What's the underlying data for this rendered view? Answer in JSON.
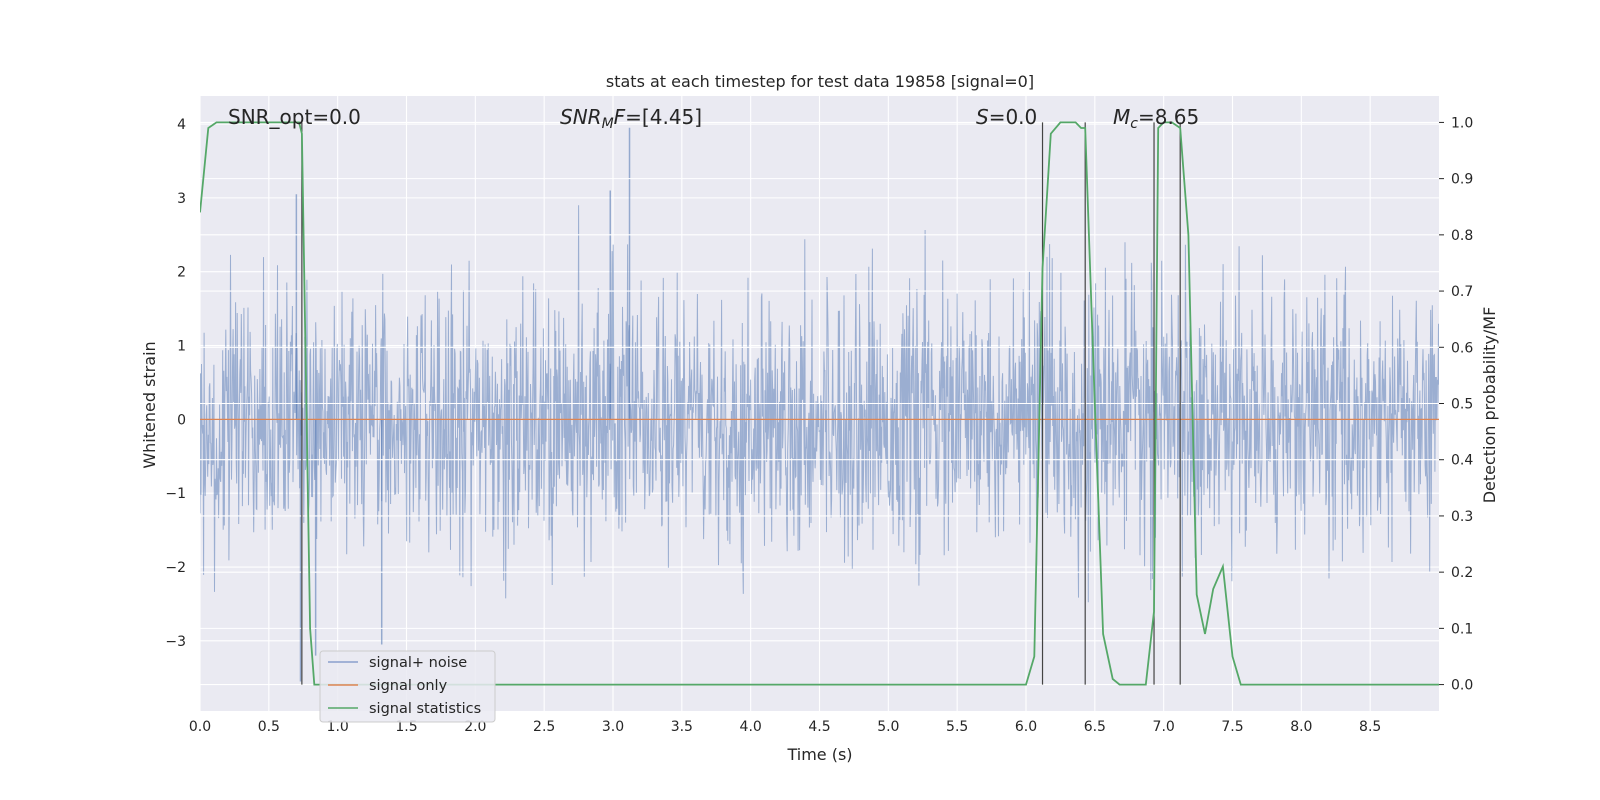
{
  "chart_data": {
    "type": "line",
    "title": "stats at each timestep for test data 19858 [signal=0]",
    "xlabel": "Time (s)",
    "ylabel": "Whitened strain",
    "y2label": "Detection probability/MF",
    "xlim": [
      0.0,
      9.0
    ],
    "ylim": [
      -3.95,
      4.38
    ],
    "y2lim": [
      -0.047,
      1.047
    ],
    "xticks": [
      "0.0",
      "0.5",
      "1.0",
      "1.5",
      "2.0",
      "2.5",
      "3.0",
      "3.5",
      "4.0",
      "4.5",
      "5.0",
      "5.5",
      "6.0",
      "6.5",
      "7.0",
      "7.5",
      "8.0",
      "8.5"
    ],
    "yticks": [
      "4",
      "3",
      "2",
      "1",
      "0",
      "−1",
      "−2",
      "−3"
    ],
    "y2ticks": [
      "1.0",
      "0.9",
      "0.8",
      "0.7",
      "0.6",
      "0.5",
      "0.4",
      "0.3",
      "0.2",
      "0.1",
      "0.0"
    ],
    "grid": true,
    "legend_position": "lower-left",
    "annotations": [
      {
        "text": "SNR_opt=0.0",
        "x": 0.2
      },
      {
        "text": "SNR_MF=[4.45]",
        "x": 2.6
      },
      {
        "text": "S=0.0",
        "x": 5.6
      },
      {
        "text": "M_c=8.65",
        "x": 6.6
      }
    ],
    "vertical_lines": [
      0.74,
      6.12,
      6.43,
      6.93,
      7.12
    ],
    "series": [
      {
        "name": "signal+ noise",
        "color": "#4c72b0",
        "description": "whitened strain noise, approx Gaussian sigma 0.9",
        "peaks": [
          [
            0.7,
            3.05
          ],
          [
            3.12,
            3.95
          ],
          [
            2.98,
            3.1
          ],
          [
            0.73,
            -3.55
          ],
          [
            1.32,
            -3.05
          ],
          [
            0.84,
            -3.2
          ]
        ]
      },
      {
        "name": "signal only",
        "color": "#dd8452",
        "x": [
          0.0,
          9.0
        ],
        "y": [
          0.0,
          0.0
        ]
      },
      {
        "name": "signal statistics",
        "color": "#55a868",
        "axis": "right",
        "x": [
          0.0,
          0.06,
          0.12,
          0.25,
          0.5,
          0.72,
          0.74,
          0.8,
          0.83,
          0.9,
          1.0,
          2.0,
          3.0,
          4.0,
          5.0,
          5.9,
          6.0,
          6.06,
          6.12,
          6.18,
          6.25,
          6.3,
          6.36,
          6.4,
          6.43,
          6.5,
          6.56,
          6.63,
          6.68,
          6.72,
          6.8,
          6.87,
          6.93,
          6.96,
          7.0,
          7.06,
          7.12,
          7.18,
          7.24,
          7.3,
          7.36,
          7.43,
          7.5,
          7.56,
          7.62,
          7.9,
          8.0,
          9.0
        ],
        "y": [
          0.84,
          0.99,
          1.0,
          1.0,
          1.0,
          1.0,
          0.98,
          0.1,
          0.0,
          0.0,
          0.0,
          0.0,
          0.0,
          0.0,
          0.0,
          0.0,
          0.0,
          0.05,
          0.74,
          0.98,
          1.0,
          1.0,
          1.0,
          0.99,
          0.99,
          0.5,
          0.09,
          0.01,
          0.0,
          0.0,
          0.0,
          0.0,
          0.13,
          0.99,
          1.0,
          1.0,
          0.99,
          0.8,
          0.16,
          0.09,
          0.17,
          0.21,
          0.05,
          0.0,
          0.0,
          0.0,
          0.0,
          0.0
        ]
      }
    ]
  }
}
